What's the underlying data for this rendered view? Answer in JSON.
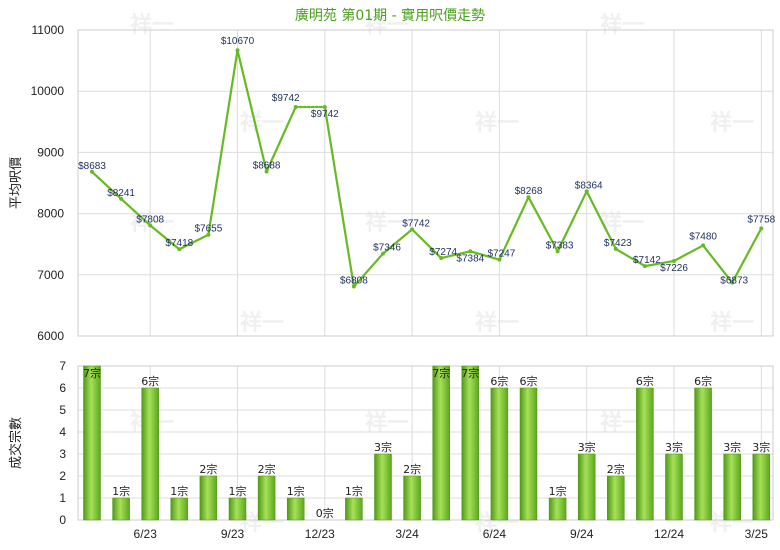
{
  "chart_data": [
    {
      "type": "line",
      "title": "廣明苑 第01期 - 實用呎價走勢",
      "ylabel": "平均呎價",
      "ylim": [
        6000,
        11000
      ],
      "yticks": [
        6000,
        7000,
        8000,
        9000,
        10000,
        11000
      ],
      "grid": true,
      "color": "#66bb22",
      "points": [
        {
          "label": "$8683",
          "value": 8683
        },
        {
          "label": "$8241",
          "value": 8241
        },
        {
          "label": "$7808",
          "value": 7808
        },
        {
          "label": "$7418",
          "value": 7418
        },
        {
          "label": "$7655",
          "value": 7655
        },
        {
          "label": "$10670",
          "value": 10670
        },
        {
          "label": "$8688",
          "value": 8688
        },
        {
          "label": "$9742",
          "value": 9742
        },
        {
          "label": "$9742",
          "value": 9742
        },
        {
          "label": "$6808",
          "value": 6808
        },
        {
          "label": "$7346",
          "value": 7346
        },
        {
          "label": "$7742",
          "value": 7742
        },
        {
          "label": "$7274",
          "value": 7274
        },
        {
          "label": "$7384",
          "value": 7384
        },
        {
          "label": "$7247",
          "value": 7247
        },
        {
          "label": "$8268",
          "value": 8268
        },
        {
          "label": "$7383",
          "value": 7383
        },
        {
          "label": "$8364",
          "value": 8364
        },
        {
          "label": "$7423",
          "value": 7423
        },
        {
          "label": "$7142",
          "value": 7142
        },
        {
          "label": "$7226",
          "value": 7226
        },
        {
          "label": "$7480",
          "value": 7480
        },
        {
          "label": "$6873",
          "value": 6873
        },
        {
          "label": "$7758",
          "value": 7758
        }
      ]
    },
    {
      "type": "bar",
      "ylabel": "成交宗數",
      "ylim": [
        0,
        7
      ],
      "yticks": [
        0,
        1,
        2,
        3,
        4,
        5,
        6,
        7
      ],
      "grid": true,
      "xtick_labels": [
        "6/23",
        "9/23",
        "12/23",
        "3/24",
        "6/24",
        "9/24",
        "12/24",
        "3/25"
      ],
      "color": "#7cc832",
      "bars": [
        {
          "value": 7,
          "label": "7宗"
        },
        {
          "value": 1,
          "label": "1宗"
        },
        {
          "value": 6,
          "label": "6宗"
        },
        {
          "value": 1,
          "label": "1宗"
        },
        {
          "value": 2,
          "label": "2宗"
        },
        {
          "value": 1,
          "label": "1宗"
        },
        {
          "value": 2,
          "label": "2宗"
        },
        {
          "value": 1,
          "label": "1宗"
        },
        {
          "value": 0,
          "label": "0宗"
        },
        {
          "value": 1,
          "label": "1宗"
        },
        {
          "value": 3,
          "label": "3宗"
        },
        {
          "value": 2,
          "label": "2宗"
        },
        {
          "value": 7,
          "label": "7宗"
        },
        {
          "value": 7,
          "label": "7宗"
        },
        {
          "value": 6,
          "label": "6宗"
        },
        {
          "value": 6,
          "label": "6宗"
        },
        {
          "value": 1,
          "label": "1宗"
        },
        {
          "value": 3,
          "label": "3宗"
        },
        {
          "value": 2,
          "label": "2宗"
        },
        {
          "value": 6,
          "label": "6宗"
        },
        {
          "value": 3,
          "label": "3宗"
        },
        {
          "value": 6,
          "label": "6宗"
        },
        {
          "value": 3,
          "label": "3宗"
        },
        {
          "value": 3,
          "label": "3宗"
        }
      ]
    }
  ],
  "watermark": "祥一"
}
